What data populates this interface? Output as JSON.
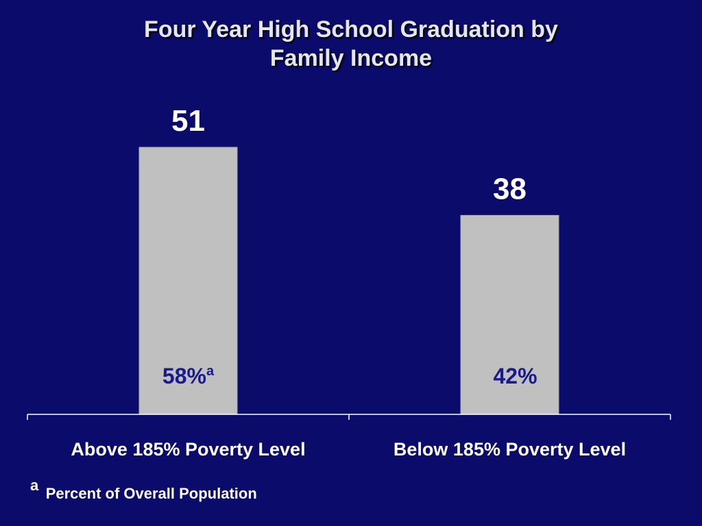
{
  "title_lines": [
    "Four Year High School Graduation by",
    "Family Income"
  ],
  "footnote": {
    "mark": "a",
    "text": "Percent of Overall Population"
  },
  "chart_data": {
    "type": "bar",
    "title": "Four Year High School Graduation by Family Income",
    "categories": [
      "Above 185% Poverty Level",
      "Below 185% Poverty Level"
    ],
    "values": [
      51,
      38
    ],
    "data_labels": [
      "51",
      "38"
    ],
    "inner_labels": [
      {
        "text": "58%",
        "superscript": "a"
      },
      {
        "text": "42%",
        "superscript": ""
      }
    ],
    "xlabel": "",
    "ylabel": "",
    "ylim": [
      0,
      51
    ],
    "grid": false,
    "legend": "none",
    "colors": {
      "background": "#0b0b6b",
      "bar": "#c0c0c0",
      "inner_label": "#1a1a8c",
      "axis": "#ffffff",
      "text": "#ffffff"
    }
  }
}
